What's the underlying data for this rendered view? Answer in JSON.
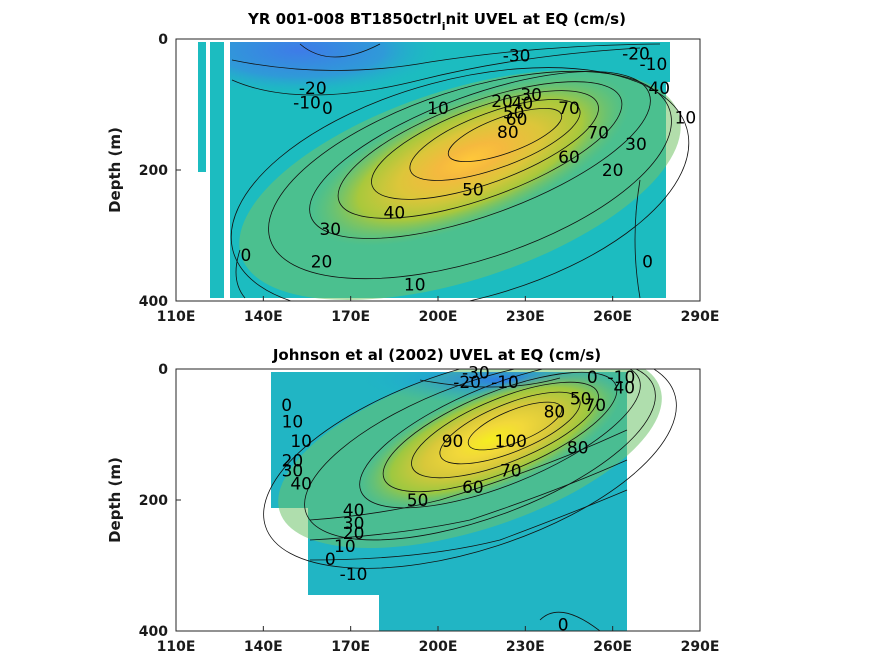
{
  "chart_data": [
    {
      "type": "contour",
      "title": "YR 001-008 BT1850ctrl",
      "title_sub": "i",
      "title_tail": "nit UVEL at EQ (cm/s)",
      "ylabel": "Depth (m)",
      "xticks": [
        "110E",
        "140E",
        "170E",
        "200E",
        "230E",
        "260E",
        "290E"
      ],
      "yticks": [
        "0",
        "200",
        "400"
      ],
      "xlim": [
        110,
        290
      ],
      "ylim": [
        0,
        400
      ],
      "contour_labels": [
        {
          "text": "-30",
          "lon": 227,
          "depth": 25
        },
        {
          "text": "-20",
          "lon": 268,
          "depth": 22
        },
        {
          "text": "-10",
          "lon": 274,
          "depth": 38
        },
        {
          "text": "-20",
          "lon": 157,
          "depth": 75
        },
        {
          "text": "-10",
          "lon": 155,
          "depth": 97
        },
        {
          "text": "0",
          "lon": 162,
          "depth": 105
        },
        {
          "text": "10",
          "lon": 200,
          "depth": 105
        },
        {
          "text": "20",
          "lon": 222,
          "depth": 95
        },
        {
          "text": "30",
          "lon": 232,
          "depth": 85
        },
        {
          "text": "40",
          "lon": 229,
          "depth": 98
        },
        {
          "text": "50",
          "lon": 226,
          "depth": 112
        },
        {
          "text": "60",
          "lon": 227,
          "depth": 122
        },
        {
          "text": "70",
          "lon": 245,
          "depth": 105
        },
        {
          "text": "80",
          "lon": 224,
          "depth": 142
        },
        {
          "text": "70",
          "lon": 255,
          "depth": 143
        },
        {
          "text": "60",
          "lon": 245,
          "depth": 180
        },
        {
          "text": "50",
          "lon": 212,
          "depth": 230
        },
        {
          "text": "40",
          "lon": 185,
          "depth": 265
        },
        {
          "text": "40",
          "lon": 276,
          "depth": 75
        },
        {
          "text": "30",
          "lon": 268,
          "depth": 160
        },
        {
          "text": "20",
          "lon": 260,
          "depth": 200
        },
        {
          "text": "10",
          "lon": 285,
          "depth": 120
        },
        {
          "text": "30",
          "lon": 163,
          "depth": 290
        },
        {
          "text": "20",
          "lon": 160,
          "depth": 340
        },
        {
          "text": "0",
          "lon": 134,
          "depth": 330
        },
        {
          "text": "10",
          "lon": 192,
          "depth": 375
        },
        {
          "text": "0",
          "lon": 272,
          "depth": 340
        }
      ]
    },
    {
      "type": "contour",
      "title": "Johnson et al (2002) UVEL at EQ (cm/s)",
      "ylabel": "Depth (m)",
      "xticks": [
        "110E",
        "140E",
        "170E",
        "200E",
        "230E",
        "260E",
        "290E"
      ],
      "yticks": [
        "0",
        "200",
        "400"
      ],
      "xlim": [
        110,
        290
      ],
      "ylim": [
        0,
        400
      ],
      "contour_labels": [
        {
          "text": "-30",
          "lon": 213,
          "depth": 5
        },
        {
          "text": "-20",
          "lon": 210,
          "depth": 20
        },
        {
          "text": "-10",
          "lon": 223,
          "depth": 20
        },
        {
          "text": "0",
          "lon": 253,
          "depth": 12
        },
        {
          "text": "-10",
          "lon": 263,
          "depth": 12
        },
        {
          "text": "40",
          "lon": 264,
          "depth": 28
        },
        {
          "text": "50",
          "lon": 249,
          "depth": 45
        },
        {
          "text": "70",
          "lon": 254,
          "depth": 55
        },
        {
          "text": "80",
          "lon": 240,
          "depth": 65
        },
        {
          "text": "0",
          "lon": 148,
          "depth": 55
        },
        {
          "text": "10",
          "lon": 150,
          "depth": 80
        },
        {
          "text": "10",
          "lon": 153,
          "depth": 110
        },
        {
          "text": "20",
          "lon": 150,
          "depth": 140
        },
        {
          "text": "30",
          "lon": 150,
          "depth": 155
        },
        {
          "text": "40",
          "lon": 153,
          "depth": 175
        },
        {
          "text": "90",
          "lon": 205,
          "depth": 110
        },
        {
          "text": "100",
          "lon": 225,
          "depth": 110
        },
        {
          "text": "80",
          "lon": 248,
          "depth": 120
        },
        {
          "text": "70",
          "lon": 225,
          "depth": 155
        },
        {
          "text": "60",
          "lon": 212,
          "depth": 180
        },
        {
          "text": "50",
          "lon": 193,
          "depth": 200
        },
        {
          "text": "40",
          "lon": 171,
          "depth": 215
        },
        {
          "text": "30",
          "lon": 171,
          "depth": 235
        },
        {
          "text": "20",
          "lon": 171,
          "depth": 250
        },
        {
          "text": "10",
          "lon": 168,
          "depth": 270
        },
        {
          "text": "0",
          "lon": 163,
          "depth": 290
        },
        {
          "text": "-10",
          "lon": 171,
          "depth": 313
        },
        {
          "text": "0",
          "lon": 243,
          "depth": 390
        }
      ]
    }
  ]
}
